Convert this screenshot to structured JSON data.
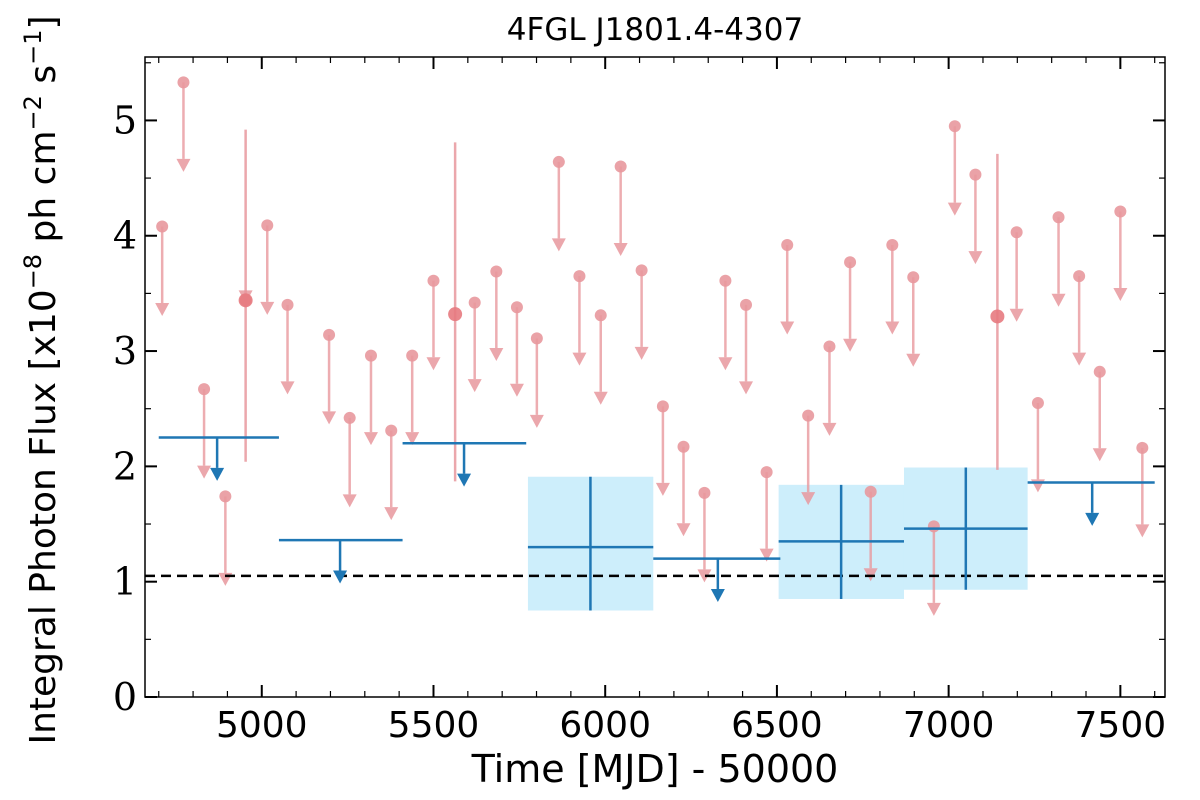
{
  "chart_data": {
    "type": "scatter",
    "title": "4FGL J1801.4-4307",
    "xlabel": "Time [MJD] - 50000",
    "ylabel_prefix": "Integral Photon Flux [x10",
    "ylabel_exp1": "−8",
    "ylabel_mid": " ph cm",
    "ylabel_exp2": "−2",
    "ylabel_mid2": " s",
    "ylabel_exp3": "−1",
    "ylabel_suffix": "]",
    "xlim": [
      4660,
      7630
    ],
    "ylim": [
      0,
      5.55
    ],
    "xticks": [
      5000,
      5500,
      6000,
      6500,
      7000,
      7500
    ],
    "xtick_labels": [
      "5000",
      "5500",
      "6000",
      "6500",
      "7000",
      "7500"
    ],
    "yticks": [
      0,
      1,
      2,
      3,
      4,
      5
    ],
    "ytick_labels": [
      "0",
      "1",
      "2",
      "3",
      "4",
      "5"
    ],
    "grid": false,
    "reference_line": {
      "y": 1.05,
      "style": "dashed",
      "color": "#000000"
    },
    "colors": {
      "fine": "#e8989d",
      "coarse": "#1f77b4",
      "band": "#cdeefb"
    },
    "fine_bins_upper_limits": {
      "x": [
        4710,
        4772,
        4832,
        4894,
        4953,
        5016,
        5075,
        5196,
        5256,
        5318,
        5377,
        5438,
        5500,
        5620,
        5683,
        5743,
        5801,
        5865,
        5925,
        5987,
        6045,
        6106,
        6168,
        6228,
        6289,
        6350,
        6410,
        6470,
        6530,
        6591,
        6653,
        6713,
        6773,
        6836,
        6897,
        6957,
        7018,
        7078,
        7198,
        7260,
        7320,
        7380,
        7440,
        7500,
        7564
      ],
      "y": [
        4.08,
        5.33,
        2.67,
        1.74,
        3.44,
        4.09,
        3.4,
        3.14,
        2.42,
        2.96,
        2.31,
        2.96,
        3.61,
        3.42,
        3.69,
        3.38,
        3.11,
        4.64,
        3.65,
        3.31,
        4.6,
        3.7,
        2.52,
        2.17,
        1.77,
        3.61,
        3.4,
        1.95,
        3.92,
        2.44,
        3.04,
        3.77,
        1.78,
        3.92,
        3.64,
        1.48,
        4.95,
        4.53,
        4.03,
        2.55,
        4.16,
        3.65,
        2.82,
        4.21,
        2.16
      ],
      "y_low": [
        3.33,
        4.58,
        1.92,
        0.99,
        3.44,
        3.34,
        2.65,
        2.39,
        1.67,
        2.21,
        1.56,
        2.21,
        2.86,
        2.67,
        2.94,
        2.63,
        2.36,
        3.89,
        2.9,
        2.56,
        3.85,
        2.95,
        1.77,
        1.42,
        1.02,
        2.86,
        2.65,
        1.2,
        3.17,
        1.69,
        2.29,
        3.02,
        1.03,
        3.17,
        2.89,
        0.73,
        4.2,
        3.78,
        3.28,
        1.8,
        3.41,
        2.9,
        2.07,
        3.46,
        1.41
      ]
    },
    "fine_bins_detections": {
      "x": [
        4953,
        5563,
        7142
      ],
      "y": [
        3.44,
        3.32,
        3.3
      ],
      "y_low": [
        2.04,
        1.87,
        1.97
      ],
      "y_high": [
        4.92,
        4.81,
        4.71
      ]
    },
    "coarse_bins_upper_limits": {
      "x_start": [
        4700,
        5050,
        5410,
        6140,
        7230
      ],
      "x_end": [
        5050,
        5410,
        5770,
        6510,
        7600
      ],
      "arrow_x": [
        4870,
        5228,
        5589,
        6328,
        7418
      ],
      "y": [
        2.25,
        1.36,
        2.2,
        1.2,
        1.86
      ],
      "y_low": [
        1.9,
        1.01,
        1.85,
        0.85,
        1.51
      ]
    },
    "coarse_bins_detections": {
      "x_start": [
        5775,
        6505,
        6870
      ],
      "x_end": [
        6140,
        6870,
        7230
      ],
      "x_center": [
        5957,
        6687,
        7050
      ],
      "y": [
        1.3,
        1.35,
        1.46
      ],
      "y_low": [
        0.75,
        0.85,
        0.93
      ],
      "y_high": [
        1.91,
        1.84,
        1.99
      ]
    }
  }
}
